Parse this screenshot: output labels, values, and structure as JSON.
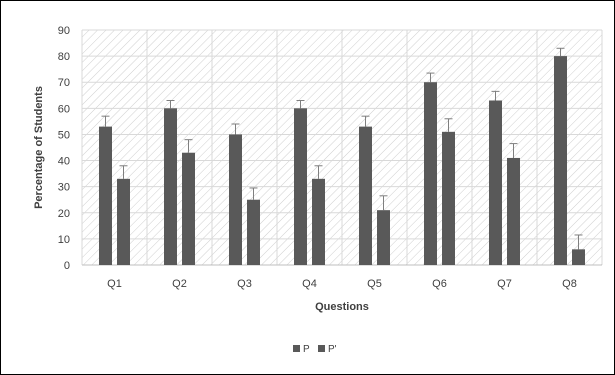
{
  "chart_data": {
    "type": "bar",
    "categories": [
      "Q1",
      "Q2",
      "Q3",
      "Q4",
      "Q5",
      "Q6",
      "Q7",
      "Q8"
    ],
    "series": [
      {
        "name": "P",
        "values": [
          53,
          60,
          50,
          60,
          53,
          70,
          63,
          80
        ],
        "errors": [
          4,
          3,
          4,
          3,
          4,
          3.5,
          3.5,
          3
        ]
      },
      {
        "name": "P'",
        "values": [
          33,
          43,
          25,
          33,
          21,
          51,
          41,
          6
        ],
        "errors": [
          5,
          5,
          4.5,
          5,
          5.5,
          5,
          5.5,
          5.5
        ]
      }
    ],
    "title": "",
    "xlabel": "Questions",
    "ylabel": "Percentage of Students",
    "ylim": [
      0,
      90
    ],
    "yticks": [
      0,
      10,
      20,
      30,
      40,
      50,
      60,
      70,
      80,
      90
    ],
    "grid": true,
    "legend_position": "bottom",
    "colors": {
      "bar": "#595959",
      "grid": "#d9d9d9",
      "hatch": "#cfcfcf",
      "error_bar": "#7f7f7f"
    }
  }
}
